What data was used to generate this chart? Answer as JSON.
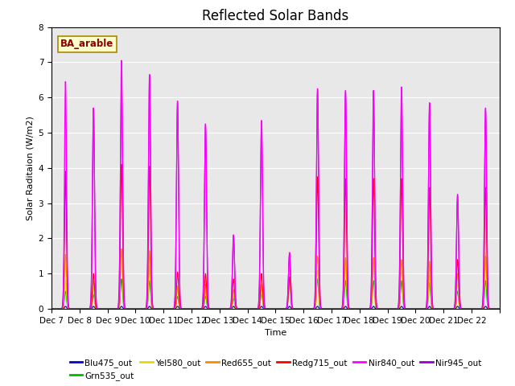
{
  "title": "Reflected Solar Bands",
  "xlabel": "Time",
  "ylabel": "Solar Raditaion (W/m2)",
  "annotation": "BA_arable",
  "ylim": [
    0,
    8.0
  ],
  "yticks": [
    0.0,
    1.0,
    2.0,
    3.0,
    4.0,
    5.0,
    6.0,
    7.0,
    8.0
  ],
  "series": {
    "Blu475_out": {
      "color": "#0000cc",
      "lw": 0.8
    },
    "Grn535_out": {
      "color": "#00bb00",
      "lw": 0.8
    },
    "Yel580_out": {
      "color": "#dddd00",
      "lw": 0.8
    },
    "Red655_out": {
      "color": "#ff8800",
      "lw": 0.8
    },
    "Redg715_out": {
      "color": "#ff0000",
      "lw": 0.8
    },
    "Nir840_out": {
      "color": "#ff00ff",
      "lw": 1.0
    },
    "Nir945_out": {
      "color": "#9900cc",
      "lw": 0.8
    }
  },
  "bg_color": "#e8e8e8",
  "title_fontsize": 12,
  "label_fontsize": 8,
  "tick_fontsize": 7.5,
  "nir840_peaks": [
    6.45,
    5.7,
    7.05,
    6.65,
    5.9,
    5.25,
    2.1,
    5.35,
    1.6,
    6.25,
    6.2,
    6.2,
    6.3,
    5.85,
    3.25,
    5.7
  ],
  "redg715_peaks": [
    3.9,
    1.0,
    4.1,
    4.05,
    1.05,
    1.0,
    0.85,
    1.0,
    0.9,
    3.75,
    3.7,
    3.7,
    3.7,
    3.45,
    1.4,
    3.45
  ],
  "red655_peaks": [
    1.55,
    0.8,
    1.7,
    1.65,
    0.65,
    0.7,
    0.55,
    0.7,
    1.45,
    1.5,
    1.45,
    1.45,
    1.4,
    1.35,
    1.0,
    1.5
  ],
  "yel580_peaks": [
    0.8,
    0.6,
    1.7,
    1.2,
    0.5,
    0.5,
    0.4,
    0.55,
    1.0,
    1.1,
    1.45,
    1.45,
    1.35,
    0.95,
    0.7,
    1.6
  ],
  "grn535_peaks": [
    0.5,
    0.4,
    0.85,
    0.8,
    0.35,
    0.35,
    0.3,
    0.45,
    0.85,
    0.85,
    0.8,
    0.8,
    0.8,
    0.75,
    0.5,
    0.8
  ],
  "blu475_peaks": [
    0.07,
    0.07,
    0.07,
    0.07,
    0.07,
    0.07,
    0.07,
    0.07,
    0.07,
    0.07,
    0.07,
    0.07,
    0.07,
    0.07,
    0.07,
    0.07
  ],
  "nir945_peaks": [
    3.9,
    5.7,
    6.65,
    6.55,
    5.85,
    5.2,
    2.05,
    5.3,
    1.55,
    6.2,
    6.15,
    6.15,
    6.25,
    5.8,
    3.2,
    5.65
  ]
}
